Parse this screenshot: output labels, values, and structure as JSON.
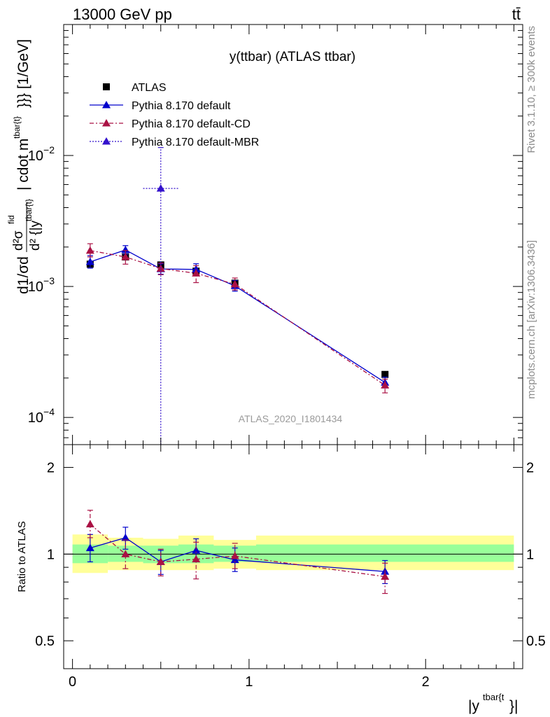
{
  "header": {
    "energy_label": "13000 GeV pp",
    "process_label": "tt̄"
  },
  "side": {
    "rivet_label": "Rivet 3.1.10, ≥ 300k events",
    "source_label": "mcplots.cern.ch [arXiv:1306.3436]"
  },
  "chart_data": [
    {
      "type": "scatter",
      "title": "y(ttbar) (ATLAS ttbar)",
      "watermark": "ATLAS_2020_I1801434",
      "ylabel": "d1/σ d d²σ^fid / d² {|y^tbar{t}| cdot m^tbar{t}}}} [1/GeV]",
      "ylabel_main": "d1/σd",
      "ylabel_frac_num": "d²σ",
      "ylabel_frac_num_sup": "fid",
      "ylabel_frac_den": "d² {|y",
      "ylabel_frac_den_sup": "tbar{t}",
      "ylabel_tail": "| cdot m",
      "ylabel_tail_sup": "tbar{t}",
      "ylabel_end": "}}} [1/GeV]",
      "yscale": "log",
      "xlim": [
        -0.05,
        2.55
      ],
      "ylim": [
        6.2e-05,
        0.1
      ],
      "yticks": [
        {
          "value": 0.01,
          "base": "10",
          "exp": "−2"
        },
        {
          "value": 0.001,
          "base": "10",
          "exp": "−3"
        },
        {
          "value": 0.0001,
          "base": "10",
          "exp": "−4"
        }
      ],
      "legend_position": "top-left",
      "series": [
        {
          "name": "ATLAS",
          "color": "#000000",
          "marker": "square",
          "points": [
            {
              "x": 0.1,
              "xerr": 0.1,
              "y": 0.00148
            },
            {
              "x": 0.3,
              "xerr": 0.1,
              "y": 0.00168
            },
            {
              "x": 0.5,
              "xerr": 0.1,
              "y": 0.00146
            },
            {
              "x": 0.7,
              "xerr": 0.1,
              "y": 0.00131
            },
            {
              "x": 0.92,
              "xerr": 0.12,
              "y": 0.00106
            },
            {
              "x": 1.77,
              "xerr": 0.73,
              "y": 0.000213
            }
          ]
        },
        {
          "name": "Pythia 8.170 default",
          "color": "#0000cc",
          "marker": "triangle",
          "line": "solid",
          "points": [
            {
              "x": 0.1,
              "y": 0.00154,
              "ylo": 0.00138,
              "yhi": 0.00172
            },
            {
              "x": 0.3,
              "y": 0.0019,
              "ylo": 0.00176,
              "yhi": 0.00205
            },
            {
              "x": 0.5,
              "y": 0.00136,
              "ylo": 0.00124,
              "yhi": 0.00149
            },
            {
              "x": 0.7,
              "y": 0.00135,
              "ylo": 0.00123,
              "yhi": 0.00149
            },
            {
              "x": 0.92,
              "y": 0.00101,
              "ylo": 0.00092,
              "yhi": 0.00111
            },
            {
              "x": 1.77,
              "y": 0.000185,
              "ylo": 0.000168,
              "yhi": 0.000203
            }
          ]
        },
        {
          "name": "Pythia 8.170 default-CD",
          "color": "#aa1144",
          "marker": "triangle",
          "line": "dashdot",
          "points": [
            {
              "x": 0.1,
              "y": 0.00188,
              "ylo": 0.00168,
              "yhi": 0.00212
            },
            {
              "x": 0.3,
              "y": 0.00168,
              "ylo": 0.00148,
              "yhi": 0.00188
            },
            {
              "x": 0.5,
              "y": 0.00137,
              "ylo": 0.00123,
              "yhi": 0.00151
            },
            {
              "x": 0.7,
              "y": 0.00126,
              "ylo": 0.00107,
              "yhi": 0.00144
            },
            {
              "x": 0.92,
              "y": 0.00104,
              "ylo": 0.00094,
              "yhi": 0.00116
            },
            {
              "x": 1.77,
              "y": 0.000176,
              "ylo": 0.000154,
              "yhi": 0.000196
            }
          ]
        },
        {
          "name": "Pythia 8.170 default-MBR",
          "color": "#3311cc",
          "marker": "triangle",
          "line": "dotted",
          "points": [
            {
              "x": 0.5,
              "xerr": 0.1,
              "y": 0.0056,
              "ylo": 1e-05,
              "yhi": 0.0115
            }
          ]
        }
      ]
    },
    {
      "type": "scatter",
      "ylabel": "Ratio to ATLAS",
      "xlabel": "|y^tbar{t}}|",
      "xlabel_main": "|y",
      "xlabel_sup": "tbar{t",
      "xlabel_end": "}|",
      "xlim": [
        -0.05,
        2.55
      ],
      "ylim": [
        0.4,
        2.4
      ],
      "xticks": [
        {
          "value": 0,
          "label": "0"
        },
        {
          "value": 1,
          "label": "1"
        },
        {
          "value": 2,
          "label": "2"
        }
      ],
      "yticks": [
        {
          "value": 2,
          "label": "2"
        },
        {
          "value": 1,
          "label": "1"
        },
        {
          "value": 0.5,
          "label": "0.5"
        }
      ],
      "reference_line": 1,
      "bands": [
        {
          "x0": 0.0,
          "x1": 0.2,
          "inner": [
            0.93,
            1.08
          ],
          "outer": [
            0.86,
            1.17
          ]
        },
        {
          "x0": 0.2,
          "x1": 0.4,
          "inner": [
            0.94,
            1.07
          ],
          "outer": [
            0.88,
            1.14
          ]
        },
        {
          "x0": 0.4,
          "x1": 0.6,
          "inner": [
            0.93,
            1.07
          ],
          "outer": [
            0.88,
            1.13
          ]
        },
        {
          "x0": 0.6,
          "x1": 0.8,
          "inner": [
            0.93,
            1.08
          ],
          "outer": [
            0.88,
            1.16
          ]
        },
        {
          "x0": 0.8,
          "x1": 1.04,
          "inner": [
            0.94,
            1.07
          ],
          "outer": [
            0.89,
            1.12
          ]
        },
        {
          "x0": 1.04,
          "x1": 2.5,
          "inner": [
            0.94,
            1.08
          ],
          "outer": [
            0.88,
            1.16
          ]
        }
      ],
      "band_colors": {
        "inner": "#99ff99",
        "outer": "#ffff99"
      },
      "series": [
        {
          "name": "Pythia 8.170 default",
          "color": "#0000cc",
          "line": "solid",
          "points": [
            {
              "x": 0.1,
              "y": 1.05,
              "ylo": 0.94,
              "yhi": 1.17
            },
            {
              "x": 0.3,
              "y": 1.14,
              "ylo": 1.04,
              "yhi": 1.24
            },
            {
              "x": 0.5,
              "y": 0.94,
              "ylo": 0.85,
              "yhi": 1.03
            },
            {
              "x": 0.7,
              "y": 1.03,
              "ylo": 0.94,
              "yhi": 1.13
            },
            {
              "x": 0.92,
              "y": 0.955,
              "ylo": 0.87,
              "yhi": 1.05
            },
            {
              "x": 1.77,
              "y": 0.87,
              "ylo": 0.79,
              "yhi": 0.95
            }
          ]
        },
        {
          "name": "Pythia 8.170 default-CD",
          "color": "#aa1144",
          "line": "dashdot",
          "points": [
            {
              "x": 0.1,
              "y": 1.27,
              "ylo": 1.14,
              "yhi": 1.42
            },
            {
              "x": 0.3,
              "y": 1.0,
              "ylo": 0.89,
              "yhi": 1.12
            },
            {
              "x": 0.5,
              "y": 0.94,
              "ylo": 0.84,
              "yhi": 1.04
            },
            {
              "x": 0.7,
              "y": 0.96,
              "ylo": 0.82,
              "yhi": 1.1
            },
            {
              "x": 0.92,
              "y": 0.985,
              "ylo": 0.89,
              "yhi": 1.09
            },
            {
              "x": 1.77,
              "y": 0.835,
              "ylo": 0.73,
              "yhi": 0.93
            }
          ]
        }
      ]
    }
  ]
}
